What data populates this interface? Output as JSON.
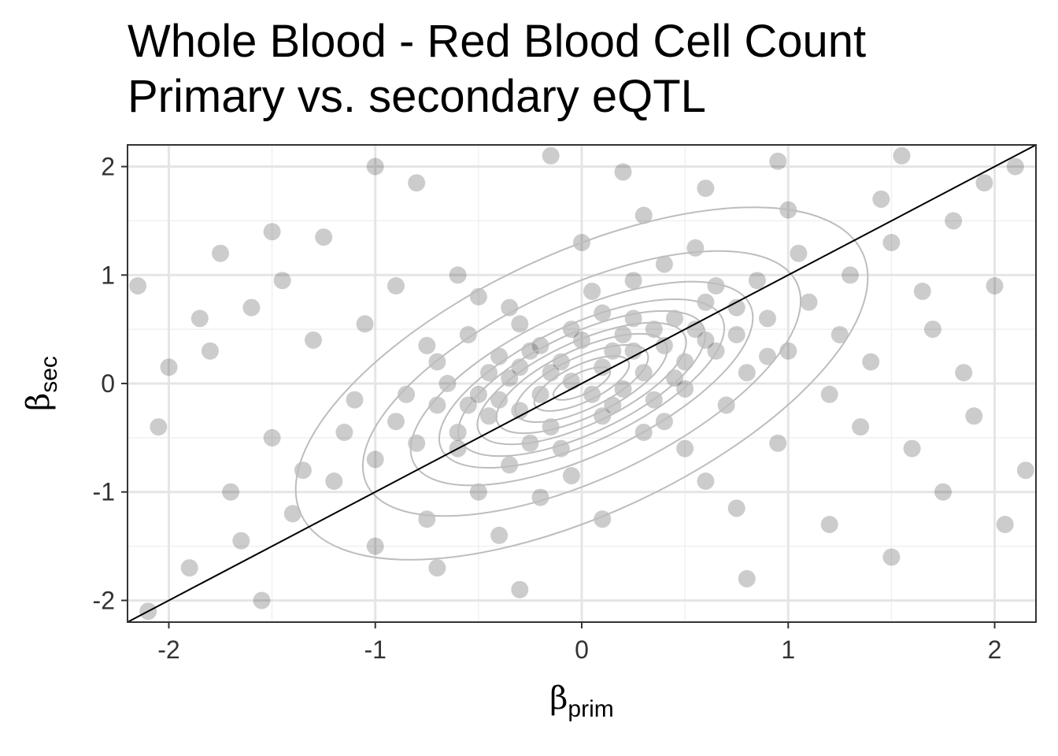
{
  "title_lines": [
    "Whole Blood - Red Blood Cell Count",
    "Primary vs. secondary eQTL"
  ],
  "chart_data": {
    "type": "scatter",
    "title": "Whole Blood - Red Blood Cell Count\nPrimary vs. secondary eQTL",
    "xlabel": "βprim",
    "ylabel": "βsec",
    "xlabel_parts": {
      "symbol": "β",
      "sub": "prim"
    },
    "ylabel_parts": {
      "symbol": "β",
      "sub": "sec"
    },
    "xlim": [
      -2.2,
      2.2
    ],
    "ylim": [
      -2.2,
      2.2
    ],
    "x_ticks": [
      -2,
      -1,
      0,
      1,
      2
    ],
    "y_ticks": [
      -2,
      -1,
      0,
      1,
      2
    ],
    "x_tick_labels": [
      "-2",
      "-1",
      "0",
      "1",
      "2"
    ],
    "y_tick_labels": [
      "-2",
      "-1",
      "0",
      "1",
      "2"
    ],
    "grid": true,
    "reference_line": {
      "slope": 1,
      "intercept": 0,
      "color": "#000000"
    },
    "point_color": "#000000",
    "point_opacity": 0.2,
    "contour_color": "#bdbdbd",
    "contours": {
      "center": [
        0,
        0
      ],
      "semi_axes": [
        [
          0.15,
          0.1
        ],
        [
          0.25,
          0.17
        ],
        [
          0.35,
          0.24
        ],
        [
          0.45,
          0.31
        ],
        [
          0.55,
          0.38
        ],
        [
          0.65,
          0.46
        ],
        [
          0.75,
          0.54
        ],
        [
          0.9,
          0.66
        ],
        [
          1.15,
          0.88
        ],
        [
          1.5,
          1.2
        ]
      ],
      "rotation_deg": 25
    },
    "points": [
      [
        -0.05,
        0.02
      ],
      [
        0.1,
        0.15
      ],
      [
        -0.2,
        -0.1
      ],
      [
        0.25,
        0.3
      ],
      [
        -0.3,
        -0.25
      ],
      [
        0.05,
        -0.1
      ],
      [
        -0.1,
        0.2
      ],
      [
        0.3,
        0.1
      ],
      [
        -0.35,
        0.05
      ],
      [
        0.15,
        -0.2
      ],
      [
        0.4,
        0.35
      ],
      [
        -0.45,
        -0.3
      ],
      [
        0.2,
        0.45
      ],
      [
        -0.25,
        0.3
      ],
      [
        0.5,
        0.2
      ],
      [
        -0.5,
        -0.1
      ],
      [
        0.0,
        0.4
      ],
      [
        0.35,
        -0.15
      ],
      [
        -0.15,
        -0.4
      ],
      [
        0.55,
        0.5
      ],
      [
        -0.6,
        -0.45
      ],
      [
        0.45,
        0.6
      ],
      [
        -0.4,
        0.25
      ],
      [
        0.65,
        0.3
      ],
      [
        -0.7,
        -0.2
      ],
      [
        0.1,
        0.65
      ],
      [
        -0.1,
        -0.6
      ],
      [
        0.6,
        0.75
      ],
      [
        -0.65,
        0.0
      ],
      [
        0.75,
        0.45
      ],
      [
        0.3,
        -0.45
      ],
      [
        -0.3,
        0.55
      ],
      [
        0.8,
        0.1
      ],
      [
        -0.8,
        -0.55
      ],
      [
        0.05,
        0.85
      ],
      [
        -0.05,
        -0.85
      ],
      [
        0.9,
        0.6
      ],
      [
        -0.9,
        -0.35
      ],
      [
        0.7,
        -0.2
      ],
      [
        -0.55,
        0.45
      ],
      [
        0.25,
        0.95
      ],
      [
        -0.35,
        -0.75
      ],
      [
        1.0,
        0.3
      ],
      [
        -1.0,
        -0.7
      ],
      [
        0.5,
        -0.6
      ],
      [
        -0.5,
        0.8
      ],
      [
        0.85,
        0.95
      ],
      [
        -0.75,
        0.35
      ],
      [
        1.1,
        0.75
      ],
      [
        -1.1,
        -0.15
      ],
      [
        0.4,
        1.1
      ],
      [
        -0.2,
        -1.05
      ],
      [
        1.2,
        -0.1
      ],
      [
        -1.2,
        -0.9
      ],
      [
        0.6,
        -0.9
      ],
      [
        -0.6,
        1.0
      ],
      [
        1.3,
        1.0
      ],
      [
        -1.3,
        0.4
      ],
      [
        0.0,
        1.3
      ],
      [
        0.1,
        -1.25
      ],
      [
        1.4,
        0.2
      ],
      [
        -1.4,
        -1.2
      ],
      [
        0.95,
        -0.55
      ],
      [
        -0.9,
        0.9
      ],
      [
        1.5,
        1.3
      ],
      [
        -1.5,
        -0.5
      ],
      [
        0.3,
        1.55
      ],
      [
        -0.4,
        -1.4
      ],
      [
        1.6,
        -0.6
      ],
      [
        -1.6,
        0.7
      ],
      [
        1.0,
        1.6
      ],
      [
        -1.0,
        -1.5
      ],
      [
        1.7,
        0.5
      ],
      [
        -1.7,
        -1.0
      ],
      [
        0.6,
        1.8
      ],
      [
        -0.7,
        -1.7
      ],
      [
        1.8,
        1.5
      ],
      [
        -1.8,
        0.3
      ],
      [
        1.9,
        -0.3
      ],
      [
        -1.9,
        -1.7
      ],
      [
        0.2,
        1.95
      ],
      [
        -0.3,
        -1.9
      ],
      [
        2.0,
        0.9
      ],
      [
        -2.0,
        0.15
      ],
      [
        1.2,
        -1.3
      ],
      [
        -1.25,
        1.35
      ],
      [
        1.5,
        -1.6
      ],
      [
        -1.5,
        1.4
      ],
      [
        2.1,
        2.0
      ],
      [
        -2.1,
        -2.1
      ],
      [
        0.8,
        -1.8
      ],
      [
        -0.8,
        1.85
      ],
      [
        1.75,
        -1.0
      ],
      [
        -1.75,
        1.2
      ],
      [
        2.15,
        -0.8
      ],
      [
        -2.15,
        0.9
      ],
      [
        0.45,
        0.05
      ],
      [
        -0.2,
        0.35
      ],
      [
        0.15,
        0.3
      ],
      [
        -0.4,
        -0.15
      ],
      [
        0.35,
        0.5
      ],
      [
        -0.15,
        0.1
      ],
      [
        0.2,
        -0.05
      ],
      [
        -0.3,
        0.15
      ],
      [
        0.6,
        0.4
      ],
      [
        -0.55,
        -0.2
      ],
      [
        0.1,
        -0.3
      ],
      [
        -0.05,
        0.5
      ],
      [
        0.25,
        0.6
      ],
      [
        -0.45,
        0.1
      ],
      [
        0.5,
        -0.05
      ],
      [
        -0.6,
        -0.6
      ],
      [
        0.75,
        0.7
      ],
      [
        -0.7,
        0.2
      ],
      [
        0.4,
        -0.35
      ],
      [
        -0.25,
        -0.55
      ],
      [
        0.65,
        0.9
      ],
      [
        -0.85,
        -0.1
      ],
      [
        0.9,
        0.25
      ],
      [
        -0.35,
        0.7
      ],
      [
        1.05,
        1.2
      ],
      [
        -1.05,
        0.55
      ],
      [
        1.25,
        0.45
      ],
      [
        -1.15,
        -0.45
      ],
      [
        0.55,
        1.25
      ],
      [
        -0.5,
        -1.0
      ],
      [
        1.35,
        -0.4
      ],
      [
        -1.35,
        -0.8
      ],
      [
        1.45,
        1.7
      ],
      [
        -1.45,
        0.95
      ],
      [
        0.75,
        -1.15
      ],
      [
        -0.75,
        -1.25
      ],
      [
        1.65,
        0.85
      ],
      [
        -1.65,
        -1.45
      ],
      [
        1.85,
        0.1
      ],
      [
        -1.85,
        0.6
      ],
      [
        0.95,
        2.05
      ],
      [
        -1.0,
        2.0
      ],
      [
        1.55,
        2.1
      ],
      [
        -1.55,
        -2.0
      ],
      [
        2.05,
        -1.3
      ],
      [
        -2.05,
        -0.4
      ],
      [
        1.95,
        1.85
      ],
      [
        -0.15,
        2.1
      ]
    ]
  }
}
